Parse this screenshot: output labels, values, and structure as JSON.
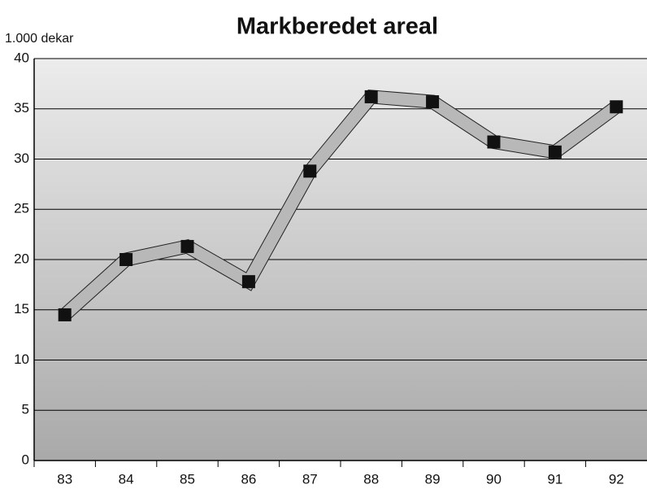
{
  "chart_data": {
    "type": "line",
    "title": "Markberedet areal",
    "y_label": "1.000 dekar",
    "categories": [
      "83",
      "84",
      "85",
      "86",
      "87",
      "88",
      "89",
      "90",
      "91",
      "92"
    ],
    "series": [
      {
        "name": "Markberedet areal",
        "color": "#b8b8b8",
        "values": [
          14.5,
          20,
          21.3,
          17.8,
          28.8,
          36.2,
          35.7,
          31.7,
          30.7,
          35.2
        ]
      }
    ],
    "ylim": [
      0,
      40
    ],
    "yticks": [
      0,
      5,
      10,
      15,
      20,
      25,
      30,
      35,
      40
    ],
    "grid": true
  }
}
